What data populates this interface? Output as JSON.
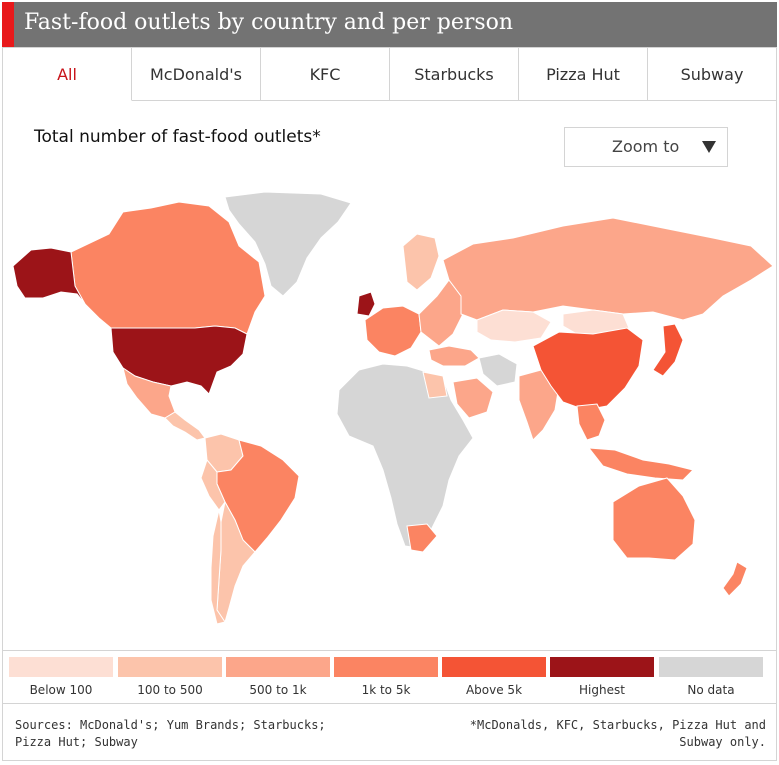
{
  "colors": {
    "accent": "#e8191b",
    "header_bg": "#737373",
    "active_tab_text": "#c8141a",
    "below_100": "#fddfd4",
    "100_to_500": "#fcc4ab",
    "500_to_1k": "#fca68a",
    "1k_to_5k": "#fb8462",
    "above_5k": "#f45435",
    "highest": "#9c1418",
    "no_data": "#d6d6d6"
  },
  "header": {
    "title": "Fast-food outlets by country and per person"
  },
  "tabs": [
    {
      "label": "All",
      "active": true
    },
    {
      "label": "McDonald's",
      "active": false
    },
    {
      "label": "KFC",
      "active": false
    },
    {
      "label": "Starbucks",
      "active": false
    },
    {
      "label": "Pizza Hut",
      "active": false
    },
    {
      "label": "Subway",
      "active": false
    }
  ],
  "map": {
    "title": "Total number of fast-food outlets*",
    "zoom_label": "Zoom to",
    "zoom_icon": "triangle-down-icon",
    "regions": [
      {
        "name": "Alaska",
        "category": "highest"
      },
      {
        "name": "Canada",
        "category": "1k_to_5k"
      },
      {
        "name": "United States",
        "category": "highest"
      },
      {
        "name": "Greenland",
        "category": "no_data"
      },
      {
        "name": "Mexico",
        "category": "500_to_1k"
      },
      {
        "name": "Central America",
        "category": "100_to_500"
      },
      {
        "name": "Colombia",
        "category": "100_to_500"
      },
      {
        "name": "Brazil",
        "category": "1k_to_5k"
      },
      {
        "name": "Peru",
        "category": "100_to_500"
      },
      {
        "name": "Argentina",
        "category": "100_to_500"
      },
      {
        "name": "Chile",
        "category": "100_to_500"
      },
      {
        "name": "United Kingdom",
        "category": "highest"
      },
      {
        "name": "Western Europe",
        "category": "1k_to_5k"
      },
      {
        "name": "Scandinavia",
        "category": "100_to_500"
      },
      {
        "name": "Eastern Europe",
        "category": "500_to_1k"
      },
      {
        "name": "Russia",
        "category": "500_to_1k"
      },
      {
        "name": "Turkey",
        "category": "500_to_1k"
      },
      {
        "name": "Africa",
        "category": "no_data"
      },
      {
        "name": "Egypt",
        "category": "100_to_500"
      },
      {
        "name": "South Africa",
        "category": "1k_to_5k"
      },
      {
        "name": "Kazakhstan",
        "category": "below_100"
      },
      {
        "name": "Mongolia",
        "category": "below_100"
      },
      {
        "name": "Saudi Arabia",
        "category": "500_to_1k"
      },
      {
        "name": "Iran",
        "category": "no_data"
      },
      {
        "name": "India",
        "category": "500_to_1k"
      },
      {
        "name": "China",
        "category": "above_5k"
      },
      {
        "name": "Japan",
        "category": "above_5k"
      },
      {
        "name": "Southeast Asia",
        "category": "1k_to_5k"
      },
      {
        "name": "Indonesia",
        "category": "1k_to_5k"
      },
      {
        "name": "Australia",
        "category": "1k_to_5k"
      },
      {
        "name": "New Zealand",
        "category": "1k_to_5k"
      }
    ]
  },
  "legend": [
    {
      "key": "below_100",
      "label": "Below 100"
    },
    {
      "key": "100_to_500",
      "label": "100 to 500"
    },
    {
      "key": "500_to_1k",
      "label": "500 to 1k"
    },
    {
      "key": "1k_to_5k",
      "label": "1k to 5k"
    },
    {
      "key": "above_5k",
      "label": "Above 5k"
    },
    {
      "key": "highest",
      "label": "Highest"
    },
    {
      "key": "no_data",
      "label": "No data"
    }
  ],
  "footer": {
    "sources": "Sources: McDonald's; Yum Brands; Starbucks; Pizza Hut; Subway",
    "footnote": "*McDonalds, KFC, Starbucks, Pizza Hut and Subway only."
  }
}
